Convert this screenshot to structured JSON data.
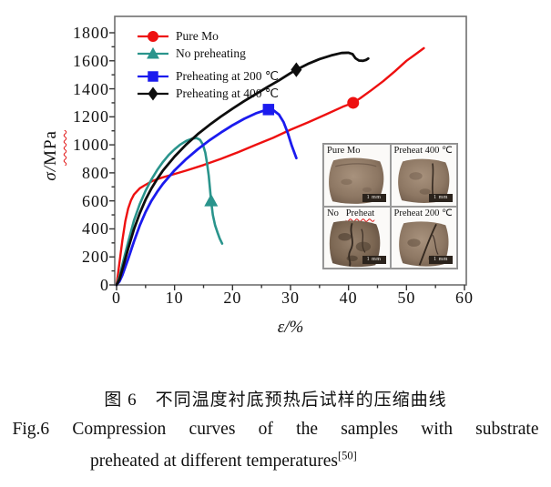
{
  "figure": {
    "ylabel_prefix": "σ/",
    "ylabel_unit": "MPa",
    "inset": {
      "panels": [
        {
          "label": "Pure Mo",
          "scale_label": "1 mm"
        },
        {
          "label": "Preheat 400 ℃",
          "scale_label": "1 mm"
        },
        {
          "label_a": "No",
          "label_b": "Preheat",
          "scale_label": "1 mm"
        },
        {
          "label": "Preheat 200 ℃",
          "scale_label": "1 mm"
        }
      ]
    }
  },
  "chart_data": {
    "type": "line",
    "title": "",
    "xlabel": "ε/%",
    "ylabel": "σ/MPa",
    "xlim": [
      0,
      60
    ],
    "ylim": [
      0,
      1800
    ],
    "x_ticks": [
      0,
      10,
      20,
      30,
      40,
      50,
      60
    ],
    "y_ticks": [
      0,
      200,
      400,
      600,
      800,
      1000,
      1200,
      1400,
      1600,
      1800
    ],
    "grid": false,
    "legend_position": "inside top-left",
    "series": [
      {
        "name": "Pure Mo",
        "color": "#ee1010",
        "marker": "circle",
        "width": 2.4,
        "marker_at": [
          40.8,
          1300
        ],
        "points": [
          [
            0,
            0
          ],
          [
            0.5,
            160
          ],
          [
            1,
            320
          ],
          [
            1.5,
            455
          ],
          [
            2,
            545
          ],
          [
            2.5,
            605
          ],
          [
            3,
            645
          ],
          [
            4,
            690
          ],
          [
            5,
            715
          ],
          [
            6,
            738
          ],
          [
            7,
            755
          ],
          [
            8,
            768
          ],
          [
            10,
            792
          ],
          [
            12,
            816
          ],
          [
            15,
            856
          ],
          [
            18,
            900
          ],
          [
            21,
            948
          ],
          [
            24,
            1000
          ],
          [
            27,
            1050
          ],
          [
            30,
            1108
          ],
          [
            33,
            1160
          ],
          [
            36,
            1215
          ],
          [
            39,
            1272
          ],
          [
            40.8,
            1300
          ],
          [
            42,
            1332
          ],
          [
            44,
            1392
          ],
          [
            46,
            1455
          ],
          [
            48,
            1525
          ],
          [
            50,
            1600
          ],
          [
            51.5,
            1645
          ],
          [
            53,
            1690
          ]
        ]
      },
      {
        "name": "No preheating",
        "color": "#2a948c",
        "marker": "triangle",
        "width": 2.6,
        "marker_at": [
          16.3,
          600
        ],
        "points": [
          [
            0,
            0
          ],
          [
            0.5,
            60
          ],
          [
            1,
            145
          ],
          [
            2,
            305
          ],
          [
            3,
            460
          ],
          [
            4,
            578
          ],
          [
            5,
            672
          ],
          [
            6,
            752
          ],
          [
            7,
            820
          ],
          [
            8,
            878
          ],
          [
            9,
            928
          ],
          [
            10,
            968
          ],
          [
            11,
            1002
          ],
          [
            12,
            1028
          ],
          [
            13,
            1044
          ],
          [
            13.8,
            1048
          ],
          [
            14.4,
            1035
          ],
          [
            14.9,
            1000
          ],
          [
            15.3,
            945
          ],
          [
            15.6,
            870
          ],
          [
            15.9,
            780
          ],
          [
            16.1,
            690
          ],
          [
            16.3,
            600
          ],
          [
            16.6,
            500
          ],
          [
            17,
            425
          ],
          [
            17.4,
            375
          ],
          [
            17.8,
            330
          ],
          [
            18.2,
            295
          ]
        ]
      },
      {
        "name": "Preheating at 200 ℃",
        "color": "#1b1bee",
        "marker": "square",
        "width": 2.8,
        "marker_at": [
          26.2,
          1252
        ],
        "points": [
          [
            0,
            0
          ],
          [
            0.5,
            25
          ],
          [
            1,
            70
          ],
          [
            2,
            185
          ],
          [
            3,
            310
          ],
          [
            4,
            425
          ],
          [
            5,
            520
          ],
          [
            6,
            600
          ],
          [
            7,
            665
          ],
          [
            8,
            722
          ],
          [
            10,
            818
          ],
          [
            12,
            898
          ],
          [
            14,
            968
          ],
          [
            16,
            1032
          ],
          [
            18,
            1088
          ],
          [
            20,
            1140
          ],
          [
            22,
            1186
          ],
          [
            24,
            1224
          ],
          [
            25.5,
            1246
          ],
          [
            26.2,
            1252
          ],
          [
            27,
            1248
          ],
          [
            28,
            1216
          ],
          [
            28.8,
            1162
          ],
          [
            29.5,
            1088
          ],
          [
            30.2,
            995
          ],
          [
            31,
            905
          ]
        ]
      },
      {
        "name": "Preheating at 400 ℃",
        "color": "#0d0d0d",
        "marker": "diamond",
        "width": 2.8,
        "marker_at": [
          31,
          1536
        ],
        "points": [
          [
            0,
            0
          ],
          [
            0.5,
            40
          ],
          [
            1,
            112
          ],
          [
            2,
            258
          ],
          [
            3,
            398
          ],
          [
            4,
            512
          ],
          [
            5,
            608
          ],
          [
            6,
            688
          ],
          [
            7,
            756
          ],
          [
            8,
            816
          ],
          [
            10,
            916
          ],
          [
            12,
            1002
          ],
          [
            14,
            1076
          ],
          [
            16,
            1142
          ],
          [
            18,
            1202
          ],
          [
            20,
            1258
          ],
          [
            22,
            1312
          ],
          [
            24,
            1362
          ],
          [
            26,
            1412
          ],
          [
            28,
            1460
          ],
          [
            30,
            1512
          ],
          [
            31,
            1536
          ],
          [
            33,
            1578
          ],
          [
            35,
            1612
          ],
          [
            37,
            1638
          ],
          [
            38.8,
            1656
          ],
          [
            40,
            1658
          ],
          [
            40.7,
            1648
          ],
          [
            41.2,
            1618
          ],
          [
            41.8,
            1602
          ],
          [
            42.5,
            1600
          ],
          [
            43,
            1606
          ],
          [
            43.4,
            1616
          ]
        ]
      }
    ]
  },
  "caption": {
    "zh": "图 6　不同温度衬底预热后试样的压缩曲线",
    "en_line1": "Fig.6 Compression curves of the samples with substrate",
    "en_line2": "preheated at different temperatures",
    "citation": "[50]"
  }
}
